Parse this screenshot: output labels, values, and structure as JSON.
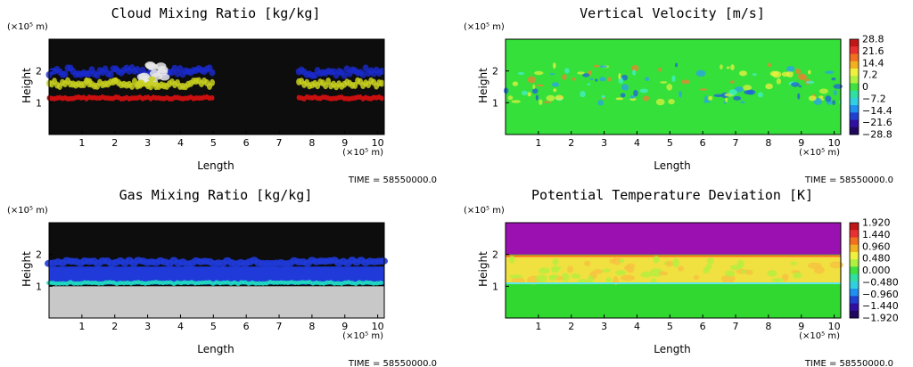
{
  "common": {
    "xlabel": "Length",
    "ylabel": "Height",
    "x_unit": "(×10⁵ m)",
    "y_unit": "(×10⁵ m)",
    "time_label": "TIME = 58550000.0",
    "x_ticks": [
      "1",
      "2",
      "3",
      "4",
      "5",
      "6",
      "7",
      "8",
      "9",
      "10"
    ],
    "y_ticks": [
      "1",
      "2"
    ]
  },
  "chart_data": [
    {
      "type": "heatmap",
      "title": "Cloud Mixing Ratio [kg/kg]",
      "xlabel": "Length",
      "ylabel": "Height",
      "xlim": [
        0,
        10.2
      ],
      "ylim": [
        0,
        3
      ],
      "colorbar": null,
      "description_colors": {
        "background": "#0d0d0d",
        "layers": [
          "#d01010",
          "#c8d020",
          "#1a2bd0",
          "#e8e8e8"
        ]
      },
      "cloud_segments_x": [
        [
          0,
          5.0
        ],
        [
          7.6,
          10.2
        ]
      ],
      "cloud_height_range": [
        1.0,
        2.2
      ]
    },
    {
      "type": "heatmap",
      "title": "Vertical Velocity [m/s]",
      "xlabel": "Length",
      "ylabel": "Height",
      "xlim": [
        0,
        10.2
      ],
      "ylim": [
        0,
        3
      ],
      "colorbar": {
        "labels": [
          "28.8",
          "21.6",
          "14.4",
          "7.2",
          "0",
          "−7.2",
          "−14.4",
          "−21.6",
          "−28.8"
        ]
      },
      "description_colors": {
        "background": "#35e03a"
      }
    },
    {
      "type": "heatmap",
      "title": "Gas Mixing Ratio [kg/kg]",
      "xlabel": "Length",
      "ylabel": "Height",
      "xlim": [
        0,
        10.2
      ],
      "ylim": [
        0,
        3
      ],
      "colorbar": null,
      "description_colors": {
        "top": "#0d0d0d",
        "band": "#1f3ad8",
        "edge": "#20e0c0",
        "bottom": "#c8c8c8"
      },
      "band_height_range": [
        1.0,
        1.8
      ]
    },
    {
      "type": "heatmap",
      "title": "Potential Temperature Deviation [K]",
      "xlabel": "Length",
      "ylabel": "Height",
      "xlim": [
        0,
        10.2
      ],
      "ylim": [
        0,
        3
      ],
      "colorbar": {
        "labels": [
          "1.920",
          "1.440",
          "0.960",
          "0.480",
          "0.000",
          "−0.480",
          "−0.960",
          "−1.440",
          "−1.920"
        ]
      },
      "description_colors": {
        "top": "#9a10b0",
        "band": "#f0e040",
        "bottom": "#30d830"
      }
    }
  ]
}
